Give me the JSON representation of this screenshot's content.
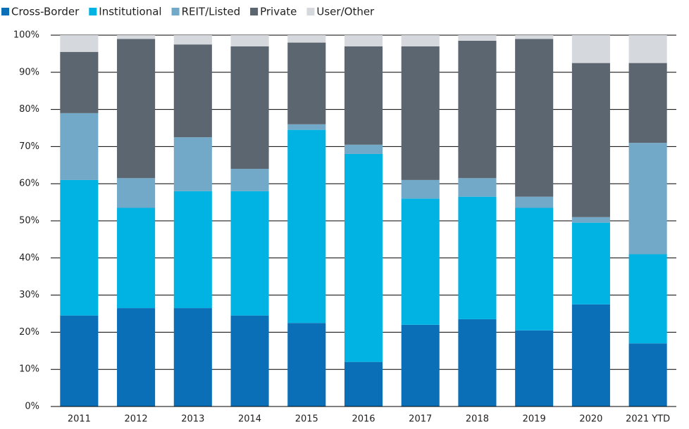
{
  "chart_data": {
    "type": "stacked_bar",
    "categories": [
      "2011",
      "2012",
      "2013",
      "2014",
      "2015",
      "2016",
      "2017",
      "2018",
      "2019",
      "2020",
      "2021 YTD"
    ],
    "series": [
      {
        "name": "Cross-Border",
        "color": "#0b6fb8",
        "values": [
          24.5,
          26.5,
          26.5,
          24.5,
          22.5,
          12,
          22,
          23.5,
          20.5,
          27.5,
          17
        ]
      },
      {
        "name": "Institutional",
        "color": "#00b3e3",
        "values": [
          36.5,
          27,
          31.5,
          33.5,
          52,
          56,
          34,
          33,
          33,
          22,
          24
        ]
      },
      {
        "name": "REIT/Listed",
        "color": "#72a9c9",
        "values": [
          18,
          8,
          14.5,
          6,
          1.5,
          2.5,
          5,
          5,
          3,
          1.5,
          30
        ]
      },
      {
        "name": "Private",
        "color": "#5b6670",
        "values": [
          16.5,
          37.5,
          25,
          33,
          22,
          26.5,
          36,
          37,
          42.5,
          41.5,
          21.5
        ]
      },
      {
        "name": "User/Other",
        "color": "#d5d8dc",
        "values": [
          4.5,
          1,
          2.5,
          3,
          2,
          3,
          3,
          1.5,
          1,
          7.5,
          7.5
        ]
      }
    ],
    "ylim": [
      0,
      100
    ],
    "yticks": [
      {
        "value": 0,
        "label": "0%"
      },
      {
        "value": 10,
        "label": "10%"
      },
      {
        "value": 20,
        "label": "20%"
      },
      {
        "value": 30,
        "label": "30%"
      },
      {
        "value": 40,
        "label": "40%"
      },
      {
        "value": 50,
        "label": "50%"
      },
      {
        "value": 60,
        "label": "60%"
      },
      {
        "value": 70,
        "label": "70%"
      },
      {
        "value": 80,
        "label": "80%"
      },
      {
        "value": 90,
        "label": "90%"
      },
      {
        "value": 100,
        "label": "100%"
      }
    ],
    "grid": true,
    "legend": "top-left"
  }
}
